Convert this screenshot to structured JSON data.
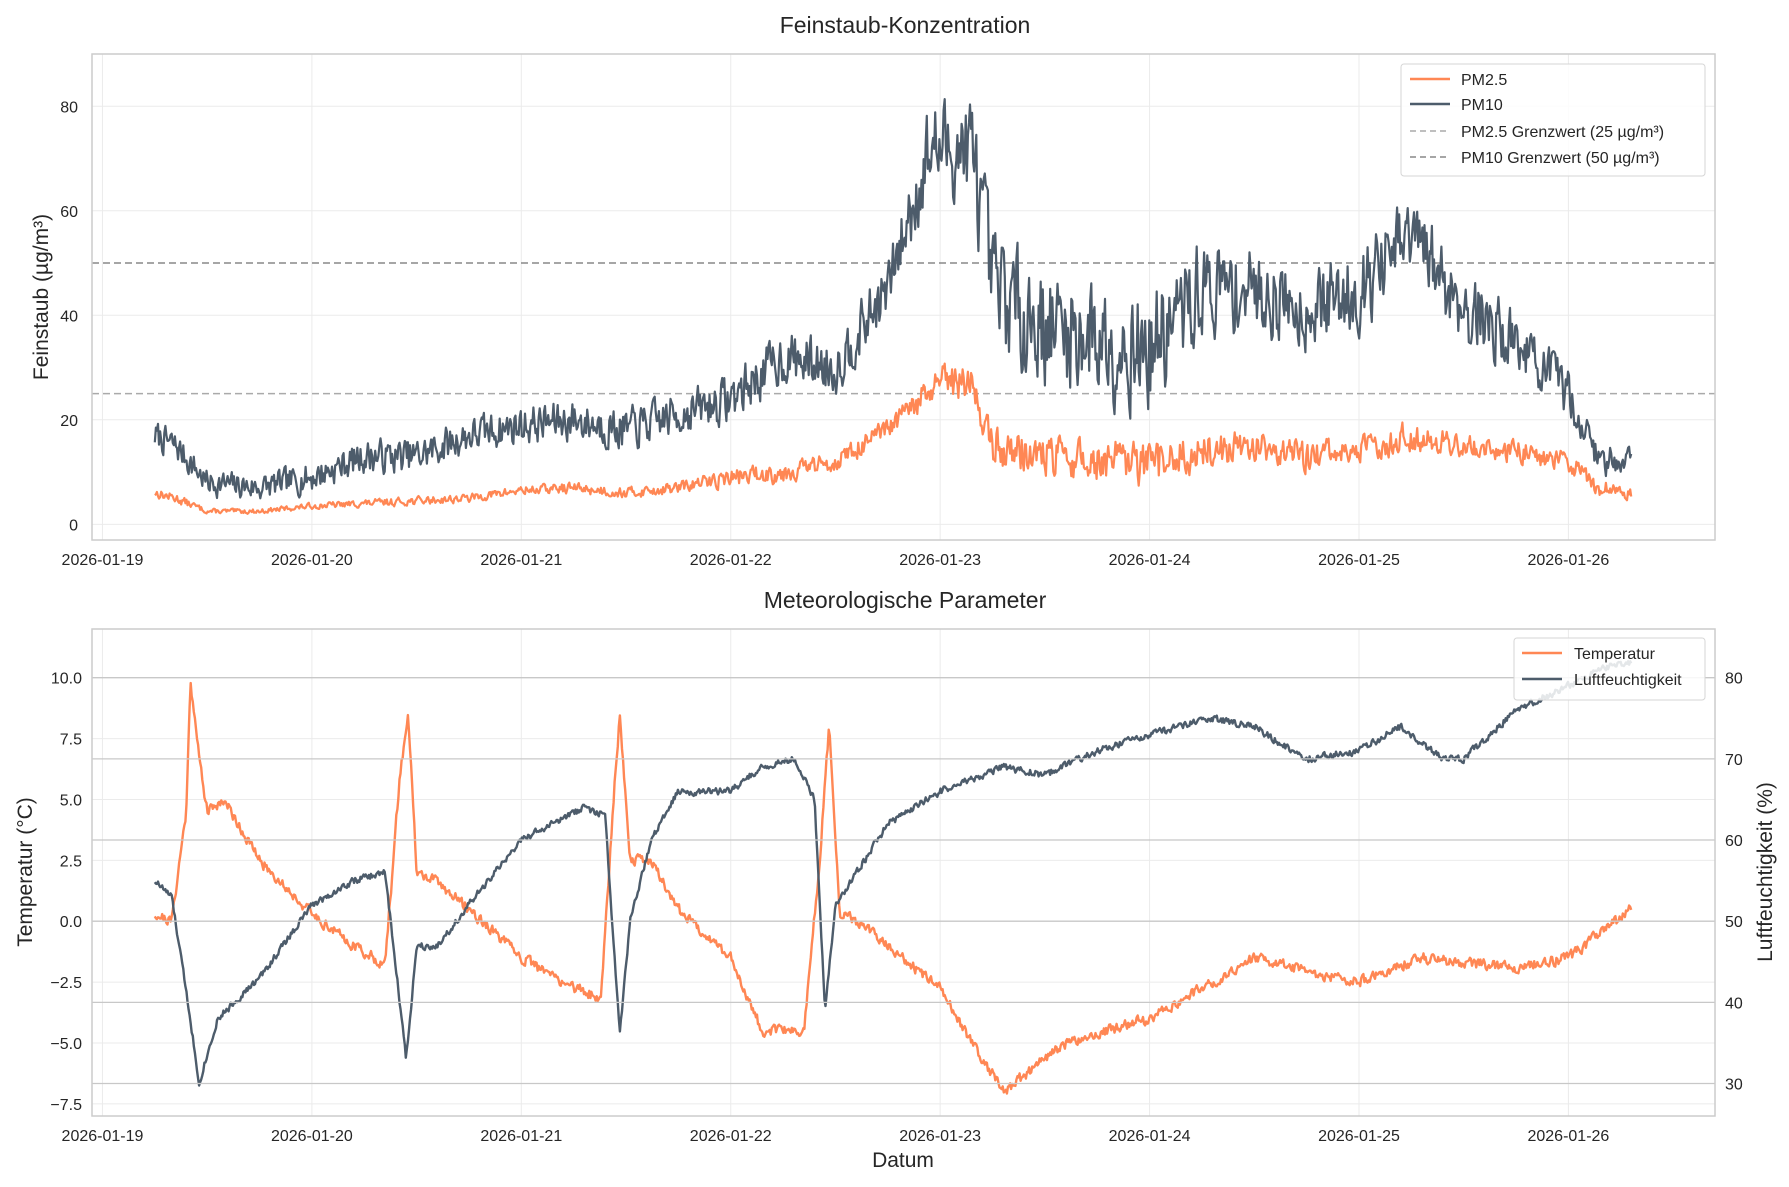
{
  "chart_data": [
    {
      "type": "line",
      "title": "Feinstaub-Konzentration",
      "xlabel": "",
      "ylabel": "Feinstaub (µg/m³)",
      "x_tick_labels": [
        "2026-01-19",
        "2026-01-20",
        "2026-01-21",
        "2026-01-22",
        "2026-01-23",
        "2026-01-24",
        "2026-01-25",
        "2026-01-26"
      ],
      "x_range_days": [
        -0.05,
        7.7
      ],
      "y_ticks": [
        0,
        20,
        40,
        60,
        80
      ],
      "ylim": [
        -3,
        90
      ],
      "legend_position": "top-right",
      "series": [
        {
          "name": "PM2.5",
          "color": "#ff8754",
          "x_days": [
            0.25,
            0.35,
            0.5,
            0.75,
            1.0,
            1.25,
            1.5,
            1.75,
            2.0,
            2.25,
            2.5,
            2.75,
            3.0,
            3.25,
            3.5,
            3.75,
            4.0,
            4.15,
            4.25,
            4.5,
            4.75,
            5.0,
            5.25,
            5.5,
            5.75,
            6.0,
            6.25,
            6.5,
            6.75,
            7.0,
            7.15,
            7.3
          ],
          "values": [
            6,
            5,
            2.5,
            2.5,
            3.5,
            4,
            4.5,
            5,
            6.5,
            7,
            6,
            7,
            9,
            10,
            12,
            18,
            27,
            27,
            15,
            13,
            12,
            11,
            14,
            15,
            13,
            14,
            17,
            15,
            14,
            12,
            7,
            6
          ],
          "noise_amplitude": [
            0.8,
            0.8,
            0.4,
            0.4,
            0.5,
            0.6,
            0.7,
            0.7,
            0.8,
            0.9,
            0.9,
            1.0,
            1.5,
            1.8,
            1.5,
            2,
            3,
            3,
            3.5,
            3.5,
            3.5,
            4,
            3,
            2.5,
            2.5,
            2.5,
            2.5,
            2,
            2,
            1.8,
            1.5,
            1.0
          ]
        },
        {
          "name": "PM10",
          "color": "#4d5c6b",
          "x_days": [
            0.25,
            0.35,
            0.5,
            0.75,
            1.0,
            1.25,
            1.5,
            1.75,
            2.0,
            2.25,
            2.5,
            2.75,
            3.0,
            3.25,
            3.5,
            3.75,
            3.95,
            4.15,
            4.25,
            4.5,
            4.75,
            5.0,
            5.25,
            5.5,
            5.75,
            6.0,
            6.25,
            6.5,
            6.75,
            7.0,
            7.15,
            7.3
          ],
          "values": [
            17,
            15,
            8,
            7,
            9,
            13,
            13,
            17,
            19,
            20,
            18,
            21,
            24,
            32,
            30,
            45,
            72,
            72,
            45,
            38,
            36,
            33,
            45,
            45,
            41,
            45,
            55,
            42,
            35,
            25,
            12,
            13
          ],
          "noise_amplitude": [
            2.5,
            2.5,
            2.2,
            2.2,
            2.5,
            2.8,
            3,
            3,
            3.2,
            3.5,
            3.5,
            3.5,
            4,
            4.5,
            4.5,
            5,
            8,
            9,
            10,
            10,
            10,
            10,
            8,
            7,
            6.5,
            7,
            7,
            7,
            5,
            4,
            2.5,
            2.5
          ]
        },
        {
          "name": "PM2.5 Grenzwert (25 µg/m³)",
          "color": "#aaaaaa",
          "style": "dashed",
          "x_days": [
            -0.05,
            7.7
          ],
          "values": [
            25,
            25
          ]
        },
        {
          "name": "PM10 Grenzwert (50 µg/m³)",
          "color": "#888888",
          "style": "dashed",
          "x_days": [
            -0.05,
            7.7
          ],
          "values": [
            50,
            50
          ]
        }
      ]
    },
    {
      "type": "line",
      "title": "Meteorologische Parameter",
      "xlabel": "Datum",
      "ylabel": "Temperatur (°C)",
      "ylabel_right": "Luftfeuchtigkeit (%)",
      "x_tick_labels": [
        "2026-01-19",
        "2026-01-20",
        "2026-01-21",
        "2026-01-22",
        "2026-01-23",
        "2026-01-24",
        "2026-01-25",
        "2026-01-26"
      ],
      "x_range_days": [
        -0.05,
        7.7
      ],
      "y_ticks": [
        "−7.5",
        "−5.0",
        "−2.5",
        "0.0",
        "2.5",
        "5.0",
        "7.5",
        "10.0"
      ],
      "ylim": [
        -8.0,
        12.0
      ],
      "y_ticks_right": [
        30,
        40,
        50,
        60,
        70,
        80
      ],
      "ylim_right": [
        26,
        86
      ],
      "legend_position": "top-right",
      "series": [
        {
          "name": "Temperatur",
          "axis": "left",
          "color": "#ff8754",
          "x_days": [
            0.25,
            0.33,
            0.4,
            0.42,
            0.45,
            0.5,
            0.58,
            0.75,
            1.0,
            1.2,
            1.35,
            1.42,
            1.46,
            1.5,
            1.6,
            1.75,
            2.0,
            2.2,
            2.38,
            2.44,
            2.47,
            2.52,
            2.62,
            2.75,
            3.0,
            3.15,
            3.35,
            3.42,
            3.47,
            3.52,
            3.6,
            3.75,
            4.0,
            4.3,
            4.45,
            4.6,
            4.8,
            5.0,
            5.2,
            5.5,
            5.8,
            6.0,
            6.3,
            6.5,
            6.75,
            7.0,
            7.15,
            7.3
          ],
          "values": [
            0.3,
            0.0,
            4.5,
            10.0,
            7.5,
            4.5,
            5.0,
            2.5,
            0.3,
            -1.0,
            -1.8,
            6.0,
            8.5,
            2.0,
            1.6,
            0.5,
            -1.5,
            -2.5,
            -3.2,
            5.0,
            8.5,
            2.5,
            2.5,
            0.5,
            -1.5,
            -4.5,
            -4.5,
            2.0,
            8.0,
            0.3,
            0.0,
            -1.0,
            -2.8,
            -7.0,
            -6.0,
            -5.0,
            -4.5,
            -4.0,
            -3.0,
            -1.5,
            -2.2,
            -2.5,
            -1.5,
            -1.7,
            -1.9,
            -1.5,
            -0.5,
            0.5
          ],
          "noise_amplitude": 0.2
        },
        {
          "name": "Luftfeuchtigkeit",
          "axis": "right",
          "color": "#4d5c6b",
          "x_days": [
            0.25,
            0.33,
            0.42,
            0.46,
            0.55,
            0.75,
            1.0,
            1.2,
            1.35,
            1.45,
            1.5,
            1.6,
            1.75,
            2.0,
            2.3,
            2.4,
            2.47,
            2.52,
            2.62,
            2.75,
            3.0,
            3.15,
            3.3,
            3.4,
            3.45,
            3.5,
            3.6,
            3.75,
            4.0,
            4.3,
            4.5,
            4.75,
            5.0,
            5.3,
            5.5,
            5.75,
            6.0,
            6.2,
            6.4,
            6.5,
            6.75,
            7.0,
            7.15,
            7.3
          ],
          "values": [
            55,
            53,
            38,
            30,
            38,
            43,
            52,
            55,
            56,
            33,
            47,
            47,
            52,
            60,
            64,
            63,
            36,
            50,
            60,
            66,
            66,
            69,
            70,
            65,
            39,
            52,
            56,
            62,
            66,
            69,
            68,
            71,
            73,
            75,
            74,
            70,
            71,
            74,
            70,
            70,
            76,
            79,
            81,
            82
          ],
          "noise_amplitude": 0.4
        }
      ]
    }
  ]
}
